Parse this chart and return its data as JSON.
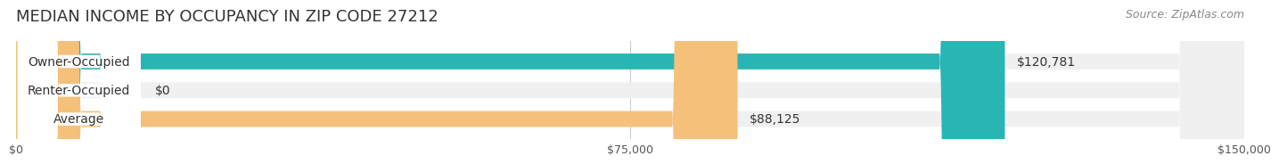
{
  "title": "MEDIAN INCOME BY OCCUPANCY IN ZIP CODE 27212",
  "source": "Source: ZipAtlas.com",
  "categories": [
    "Owner-Occupied",
    "Renter-Occupied",
    "Average"
  ],
  "values": [
    120781,
    0,
    88125
  ],
  "bar_colors": [
    "#2ab5b5",
    "#c9a8d4",
    "#f5c07a"
  ],
  "bar_bg_color": "#f0f0f0",
  "label_values": [
    "$120,781",
    "$0",
    "$88,125"
  ],
  "xlim": [
    0,
    150000
  ],
  "xticks": [
    0,
    75000,
    150000
  ],
  "xtick_labels": [
    "$0",
    "$75,000",
    "$150,000"
  ],
  "title_fontsize": 13,
  "label_fontsize": 10,
  "tick_fontsize": 9,
  "source_fontsize": 9,
  "bar_height": 0.55,
  "background_color": "#ffffff"
}
